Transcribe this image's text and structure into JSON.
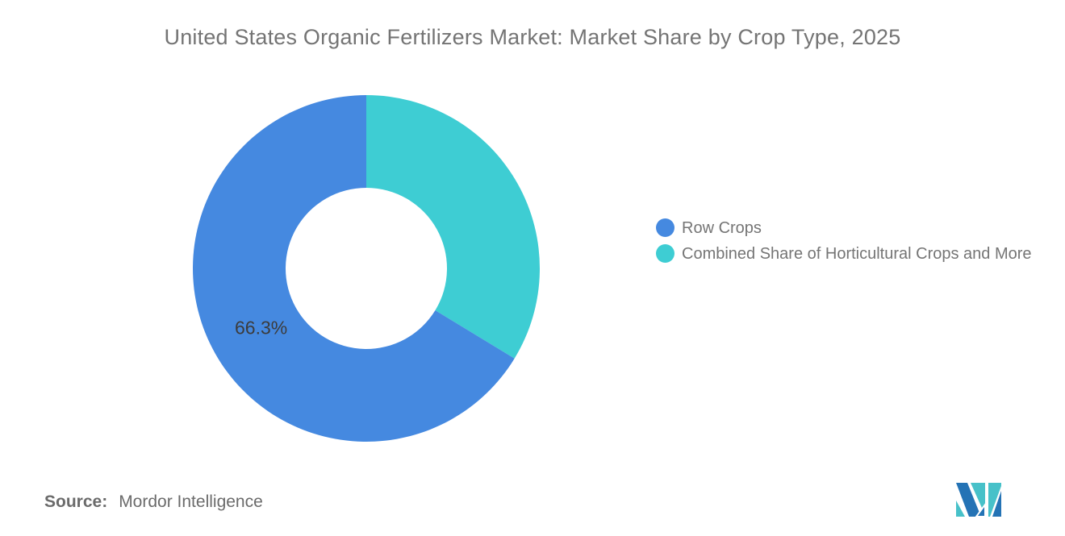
{
  "header": {
    "title": "United States Organic Fertilizers Market: Market Share by Crop Type, 2025"
  },
  "chart_data": {
    "type": "pie",
    "subtype": "donut",
    "title": "United States Organic Fertilizers Market: Market Share by Crop Type, 2025",
    "unit": "%",
    "slices": [
      {
        "label": "Row Crops",
        "value": 66.3,
        "color": "#4589E0",
        "data_label": "66.3%"
      },
      {
        "label": "Combined Share of Horticultural Crops and More",
        "value": 33.7,
        "color": "#3ECDD3",
        "data_label": ""
      }
    ],
    "start_angle_deg": 0,
    "clockwise_from_top": true,
    "inner_radius_ratio": 0.465,
    "legend_position": "right",
    "data_label_color": "#3C3C3C",
    "background": "#FFFFFF"
  },
  "source": {
    "prefix": "Source:",
    "name": "Mordor Intelligence"
  },
  "logo": {
    "name": "mordor-intelligence-logo",
    "blue": "#2473B5",
    "teal": "#47C1C9"
  },
  "styles": {
    "title_color": "#747474",
    "legend_text_color": "#757575",
    "source_color": "#6B6B6B"
  }
}
